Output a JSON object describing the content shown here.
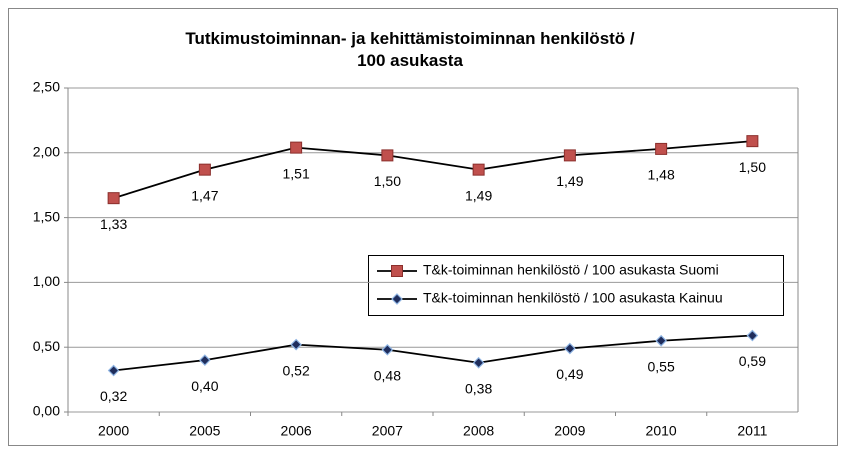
{
  "chart_data": {
    "type": "line",
    "title": "Tutkimustoiminnan- ja kehittämistoiminnan henkilöstö /\n100 asukasta",
    "categories": [
      "2000",
      "2005",
      "2006",
      "2007",
      "2008",
      "2009",
      "2010",
      "2011"
    ],
    "series": [
      {
        "name": "T&k-toiminnan henkilöstö / 100 asukasta Suomi",
        "color": "#c0504d",
        "marker": "square",
        "values": [
          1.65,
          1.87,
          2.04,
          1.98,
          1.87,
          1.98,
          2.03,
          2.09
        ],
        "annotations": [
          "1,33",
          "1,47",
          "1,51",
          "1,50",
          "1,49",
          "1,49",
          "1,48",
          "1,50"
        ]
      },
      {
        "name": "T&k-toiminnan henkilöstö / 100 asukasta Kainuu",
        "color": "#1f2d5c",
        "marker": "diamond",
        "values": [
          0.32,
          0.4,
          0.52,
          0.48,
          0.38,
          0.49,
          0.55,
          0.59
        ],
        "value_labels": [
          "0,32",
          "0,40",
          "0,52",
          "0,48",
          "0,38",
          "0,49",
          "0,55",
          "0,59"
        ]
      }
    ],
    "ylim": [
      0,
      2.5
    ],
    "yticks": [
      {
        "value": 0,
        "label": "0,00"
      },
      {
        "value": 0.5,
        "label": "0,50"
      },
      {
        "value": 1,
        "label": "1,00"
      },
      {
        "value": 1.5,
        "label": "1,50"
      },
      {
        "value": 2,
        "label": "2,00"
      },
      {
        "value": 2.5,
        "label": "2,50"
      }
    ],
    "grid": true
  }
}
